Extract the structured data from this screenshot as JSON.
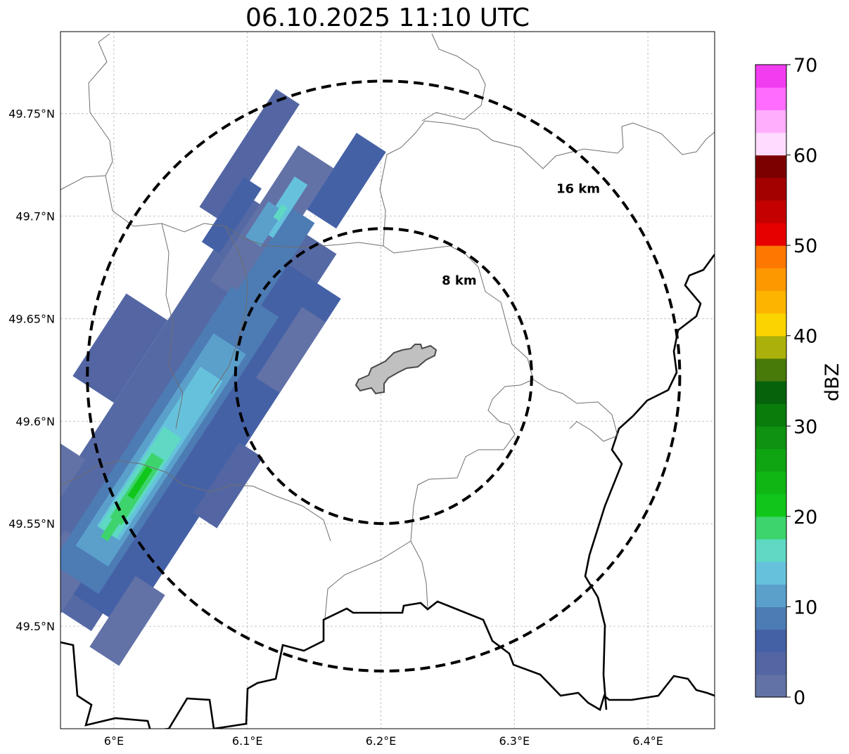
{
  "title": "06.10.2025 11:10 UTC",
  "map": {
    "lon_range": [
      5.96,
      6.45
    ],
    "lat_range": [
      49.45,
      49.79
    ],
    "lon_ticks": [
      {
        "value": 6.0,
        "label": "6°E"
      },
      {
        "value": 6.1,
        "label": "6.1°E"
      },
      {
        "value": 6.2,
        "label": "6.2°E"
      },
      {
        "value": 6.3,
        "label": "6.3°E"
      },
      {
        "value": 6.4,
        "label": "6.4°E"
      }
    ],
    "lat_ticks": [
      {
        "value": 49.5,
        "label": "49.5°N"
      },
      {
        "value": 49.55,
        "label": "49.55°N"
      },
      {
        "value": 49.6,
        "label": "49.6°N"
      },
      {
        "value": 49.65,
        "label": "49.65°N"
      },
      {
        "value": 49.7,
        "label": "49.7°N"
      },
      {
        "value": 49.75,
        "label": "49.75°N"
      }
    ],
    "gridlines": true,
    "center": {
      "lon": 6.202,
      "lat": 49.622
    },
    "range_rings": [
      {
        "radius_km": 8,
        "label": "8 km"
      },
      {
        "radius_km": 16,
        "label": "16 km"
      }
    ]
  },
  "colorbar": {
    "label": "dBZ",
    "min": 0,
    "max": 70,
    "ticks": [
      {
        "value": 0,
        "label": "0"
      },
      {
        "value": 10,
        "label": "10"
      },
      {
        "value": 20,
        "label": "20"
      },
      {
        "value": 30,
        "label": "30"
      },
      {
        "value": 40,
        "label": "40"
      },
      {
        "value": 50,
        "label": "50"
      },
      {
        "value": 60,
        "label": "60"
      },
      {
        "value": 70,
        "label": "70"
      }
    ],
    "colors": [
      "#6272a6",
      "#5366a3",
      "#4561a6",
      "#4d7bb4",
      "#5aa0cb",
      "#66c2dc",
      "#5fd8c4",
      "#3ed46d",
      "#11c61b",
      "#10b614",
      "#0fa412",
      "#0f9111",
      "#097c0c",
      "#07620c",
      "#477a09",
      "#acb00a",
      "#fbd400",
      "#fdb400",
      "#fd9800",
      "#fd7800",
      "#e60000",
      "#c40000",
      "#a30000",
      "#7c0000",
      "#ffdcff",
      "#ffaefe",
      "#ff6cff",
      "#f23cf0"
    ]
  }
}
